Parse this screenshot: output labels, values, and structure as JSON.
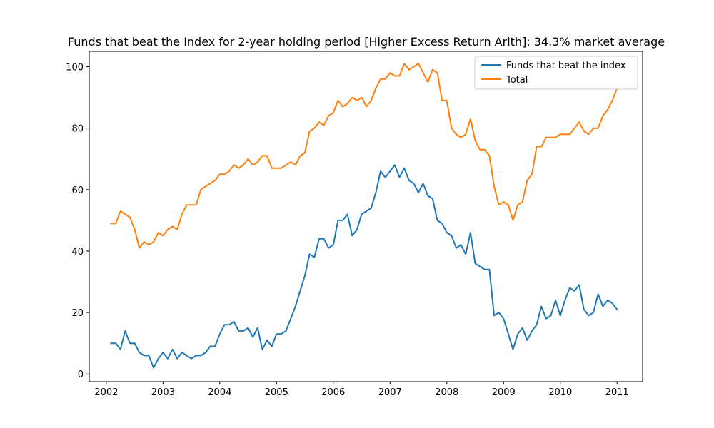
{
  "chart_data": {
    "type": "line",
    "title": "Funds that beat the Index for 2-year holding period [Higher Excess Return Arith]: 34.3% market average",
    "xlabel": "",
    "ylabel": "",
    "xlim": [
      2001.7,
      2011.45
    ],
    "ylim": [
      -2.5,
      105
    ],
    "x_ticks": [
      "2002",
      "2003",
      "2004",
      "2005",
      "2006",
      "2007",
      "2008",
      "2009",
      "2010",
      "2011"
    ],
    "y_ticks": [
      "0",
      "20",
      "40",
      "60",
      "80",
      "100"
    ],
    "legend": {
      "position": "top-right"
    },
    "grid": false,
    "x_start_year": 2002.083,
    "x_step_months": 1,
    "series": [
      {
        "name": "Funds that beat the index",
        "color": "#1f77b4",
        "values": [
          10,
          10,
          8,
          14,
          10,
          10,
          7,
          6,
          6,
          2,
          5,
          7,
          5,
          8,
          5,
          7,
          6,
          5,
          6,
          6,
          7,
          9,
          9,
          13,
          16,
          16,
          17,
          14,
          14,
          15,
          12,
          15,
          8,
          11,
          9,
          13,
          13,
          14,
          18,
          22,
          27,
          32,
          39,
          38,
          44,
          44,
          41,
          42,
          50,
          50,
          52,
          45,
          47,
          52,
          53,
          54,
          59,
          66,
          64,
          66,
          68,
          64,
          67,
          63,
          62,
          59,
          62,
          58,
          57,
          50,
          49,
          46,
          45,
          41,
          42,
          39,
          46,
          36,
          35,
          34,
          34,
          19,
          20,
          18,
          13,
          8,
          13,
          15,
          11,
          14,
          16,
          22,
          18,
          19,
          24,
          19,
          24,
          28,
          27,
          29,
          21,
          19,
          20,
          26,
          22,
          24,
          23,
          21
        ]
      },
      {
        "name": "Total",
        "color": "#ff7f0e",
        "values": [
          49,
          49,
          53,
          52,
          51,
          47,
          41,
          43,
          42,
          43,
          46,
          45,
          47,
          48,
          47,
          52,
          55,
          55,
          55,
          60,
          61,
          62,
          63,
          65,
          65,
          66,
          68,
          67,
          68,
          70,
          68,
          69,
          71,
          71,
          67,
          67,
          67,
          68,
          69,
          68,
          71,
          72,
          79,
          80,
          82,
          81,
          84,
          85,
          89,
          87,
          88,
          90,
          89,
          90,
          87,
          89,
          93,
          96,
          96,
          98,
          97,
          97,
          101,
          99,
          100,
          101,
          98,
          95,
          99,
          98,
          89,
          89,
          80,
          78,
          77,
          78,
          83,
          76,
          73,
          73,
          71,
          61,
          55,
          56,
          55,
          50,
          55,
          56,
          63,
          65,
          74,
          74,
          77,
          77,
          77,
          78,
          78,
          78,
          80,
          82,
          79,
          78,
          80,
          80,
          84,
          86,
          89,
          93
        ]
      }
    ]
  }
}
